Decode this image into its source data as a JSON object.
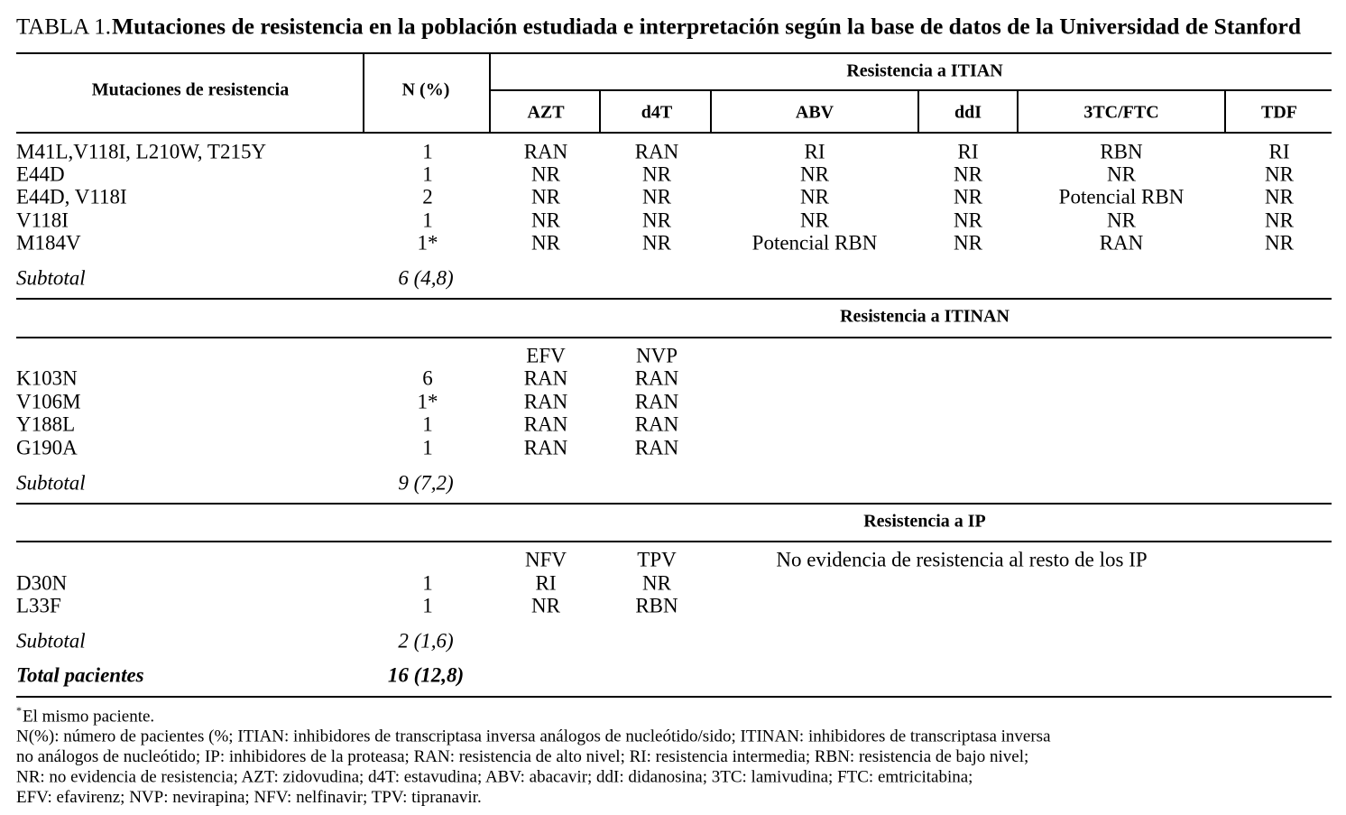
{
  "title": {
    "label": "TABLA 1.",
    "text": "Mutaciones de resistencia en la población estudiada e interpretación según la base de datos de la Universidad de Stanford"
  },
  "header": {
    "mutations": "Mutaciones de resistencia",
    "n": "N (%)",
    "group": "Resistencia a ITIAN",
    "drugs": [
      "AZT",
      "d4T",
      "ABV",
      "ddI",
      "3TC/FTC",
      "TDF"
    ]
  },
  "sections": [
    {
      "rows": [
        [
          "M41L,V118I, L210W, T215Y",
          "1",
          "RAN",
          "RAN",
          "RI",
          "RI",
          "RBN",
          "RI"
        ],
        [
          "E44D",
          "1",
          "NR",
          "NR",
          "NR",
          "NR",
          "NR",
          "NR"
        ],
        [
          "E44D, V118I",
          "2",
          "NR",
          "NR",
          "NR",
          "NR",
          "Potencial RBN",
          "NR"
        ],
        [
          "V118I",
          "1",
          "NR",
          "NR",
          "NR",
          "NR",
          "NR",
          "NR"
        ],
        [
          "M184V",
          "1*",
          "NR",
          "NR",
          "Potencial RBN",
          "NR",
          "RAN",
          "NR"
        ]
      ],
      "subtotal": {
        "label": "Subtotal",
        "value": "6 (4,8)"
      }
    },
    {
      "heading": "Resistencia a ITINAN",
      "drugs": [
        "EFV",
        "NVP"
      ],
      "rows": [
        [
          "K103N",
          "6",
          "RAN",
          "RAN"
        ],
        [
          "V106M",
          "1*",
          "RAN",
          "RAN"
        ],
        [
          "Y188L",
          "1",
          "RAN",
          "RAN"
        ],
        [
          "G190A",
          "1",
          "RAN",
          "RAN"
        ]
      ],
      "subtotal": {
        "label": "Subtotal",
        "value": "9 (7,2)"
      }
    },
    {
      "heading": "Resistencia a IP",
      "drugs": [
        "NFV",
        "TPV"
      ],
      "note": "No evidencia de resistencia al resto de los IP",
      "rows": [
        [
          "D30N",
          "1",
          "RI",
          "NR"
        ],
        [
          "L33F",
          "1",
          "NR",
          "RBN"
        ]
      ],
      "subtotal": {
        "label": "Subtotal",
        "value": "2 (1,6)"
      }
    }
  ],
  "total": {
    "label": "Total pacientes",
    "value": "16 (12,8)"
  },
  "footnotes": {
    "mark": "*",
    "first": "El mismo paciente.",
    "lines": [
      "N(%): número de pacientes (%; ITIAN: inhibidores de transcriptasa inversa análogos de nucleótido/sido; ITINAN: inhibidores de transcriptasa inversa",
      "no análogos de nucleótido; IP: inhibidores de la proteasa; RAN: resistencia de alto nivel; RI: resistencia intermedia; RBN: resistencia de bajo nivel;",
      "NR: no evidencia de resistencia; AZT: zidovudina; d4T: estavudina; ABV: abacavir; ddI: didanosina; 3TC: lamivudina; FTC: emtricitabina;",
      "EFV: efavirenz; NVP: nevirapina; NFV: nelfinavir; TPV: tipranavir."
    ]
  }
}
